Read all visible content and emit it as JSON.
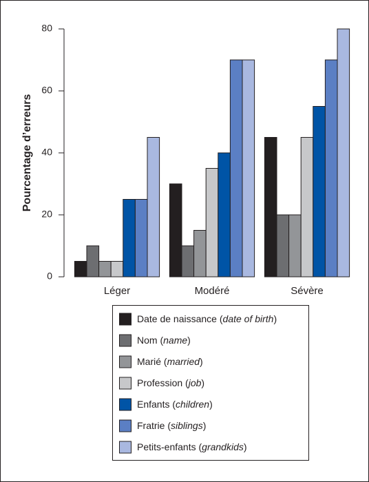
{
  "chart_data": {
    "type": "bar",
    "y_label": "Pourcentage d’erreurs",
    "categories": [
      "Léger",
      "Modéré",
      "Sévère"
    ],
    "series": [
      {
        "name": "Date de naissance (date of birth)",
        "color": "#231f20",
        "values": [
          5,
          30,
          45
        ]
      },
      {
        "name": "Nom (name)",
        "color": "#6d6e71",
        "values": [
          10,
          10,
          20
        ]
      },
      {
        "name": "Marié (married)",
        "color": "#939598",
        "values": [
          5,
          15,
          20
        ]
      },
      {
        "name": "Profession (job)",
        "color": "#c7c8ca",
        "values": [
          5,
          35,
          45
        ]
      },
      {
        "name": "Enfants (children)",
        "color": "#0054a6",
        "values": [
          25,
          40,
          55
        ]
      },
      {
        "name": "Fratrie (siblings)",
        "color": "#5b7fc4",
        "values": [
          25,
          70,
          70
        ]
      },
      {
        "name": "Petits-enfants (grandkids)",
        "color": "#a9b8e0",
        "values": [
          45,
          70,
          80
        ]
      }
    ],
    "ylim": [
      0,
      80
    ],
    "yticks": [
      0,
      20,
      40,
      60,
      80
    ],
    "grid": false,
    "legend": "bottom"
  }
}
